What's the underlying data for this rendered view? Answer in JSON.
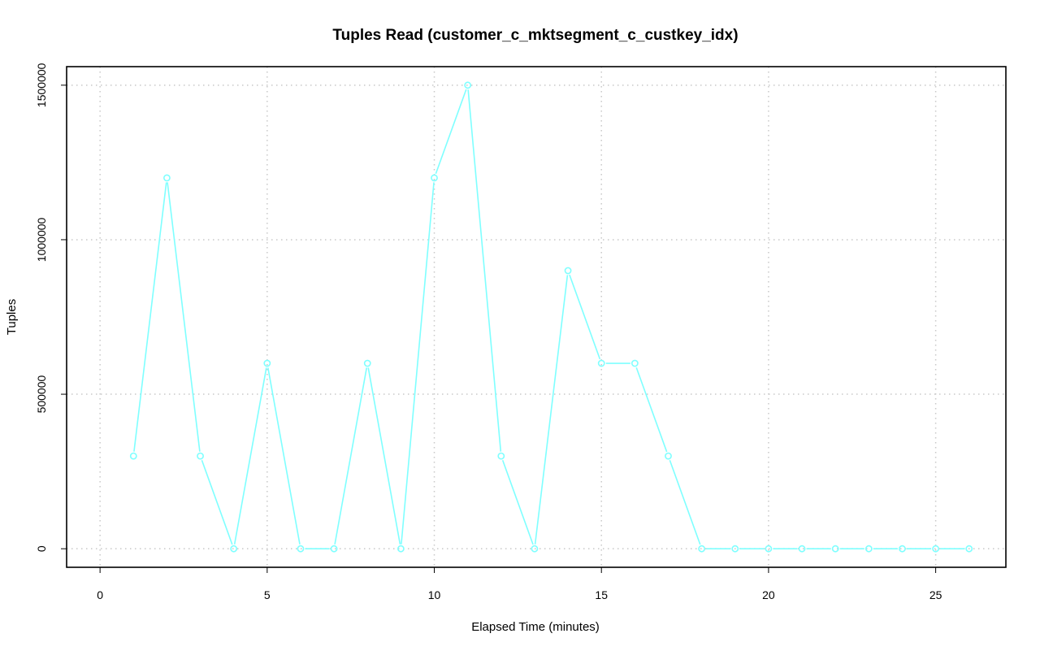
{
  "chart_data": {
    "type": "line",
    "title": "Tuples Read (customer_c_mktsegment_c_custkey_idx)",
    "xlabel": "Elapsed Time (minutes)",
    "ylabel": "Tuples",
    "xlim": [
      -1,
      27.1
    ],
    "ylim": [
      -60000,
      1560000
    ],
    "x_ticks": [
      0,
      5,
      10,
      15,
      20,
      25
    ],
    "y_ticks": [
      0,
      500000,
      1000000,
      1500000
    ],
    "x_tick_labels": [
      "0",
      "5",
      "10",
      "15",
      "20",
      "25"
    ],
    "y_tick_labels": [
      "0",
      "500000",
      "1000000",
      "1500000"
    ],
    "grid": true,
    "legend": "none",
    "series": [
      {
        "color": "#7fffff",
        "marker": "open-circle",
        "x": [
          1,
          2,
          3,
          4,
          5,
          6,
          7,
          8,
          9,
          10,
          11,
          12,
          13,
          14,
          15,
          16,
          17,
          18,
          19,
          20,
          21,
          22,
          23,
          24,
          25,
          26
        ],
        "values": [
          300000,
          1200000,
          300000,
          0,
          600000,
          0,
          0,
          600000,
          0,
          1200000,
          1500000,
          300000,
          0,
          900000,
          600000,
          600000,
          300000,
          0,
          0,
          0,
          0,
          0,
          0,
          0,
          0,
          0
        ]
      }
    ]
  }
}
